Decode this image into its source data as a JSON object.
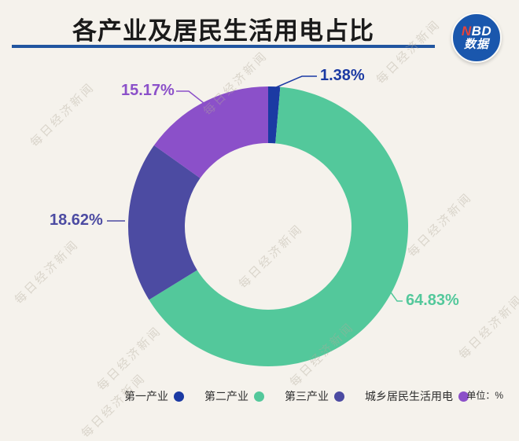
{
  "page": {
    "background": "#f5f2ec"
  },
  "header": {
    "title": "各产业及居民生活用电占比",
    "underline_color": "#2155a0",
    "logo": {
      "text_n": "N",
      "text_bd": "BD",
      "text_cn": "数据",
      "circle_color": "#1a57ad",
      "n_color": "#e8443a"
    }
  },
  "watermark": {
    "text": "每日经济新闻"
  },
  "unit_label": "单位：%",
  "chart_data": {
    "type": "pie",
    "subtype": "donut",
    "title": "各产业及居民生活用电占比",
    "unit": "%",
    "categories": [
      "第一产业",
      "第二产业",
      "第三产业",
      "城乡居民生活用电"
    ],
    "values": [
      1.38,
      64.83,
      18.62,
      15.17
    ],
    "labels": [
      "1.38%",
      "64.83%",
      "18.62%",
      "15.17%"
    ],
    "colors": [
      "#1b3aa3",
      "#53c89b",
      "#4c4ba2",
      "#8b50c9"
    ],
    "start_angle_deg": 0,
    "direction": "clockwise",
    "legend_position": "bottom",
    "background": "#f5f2ec"
  }
}
